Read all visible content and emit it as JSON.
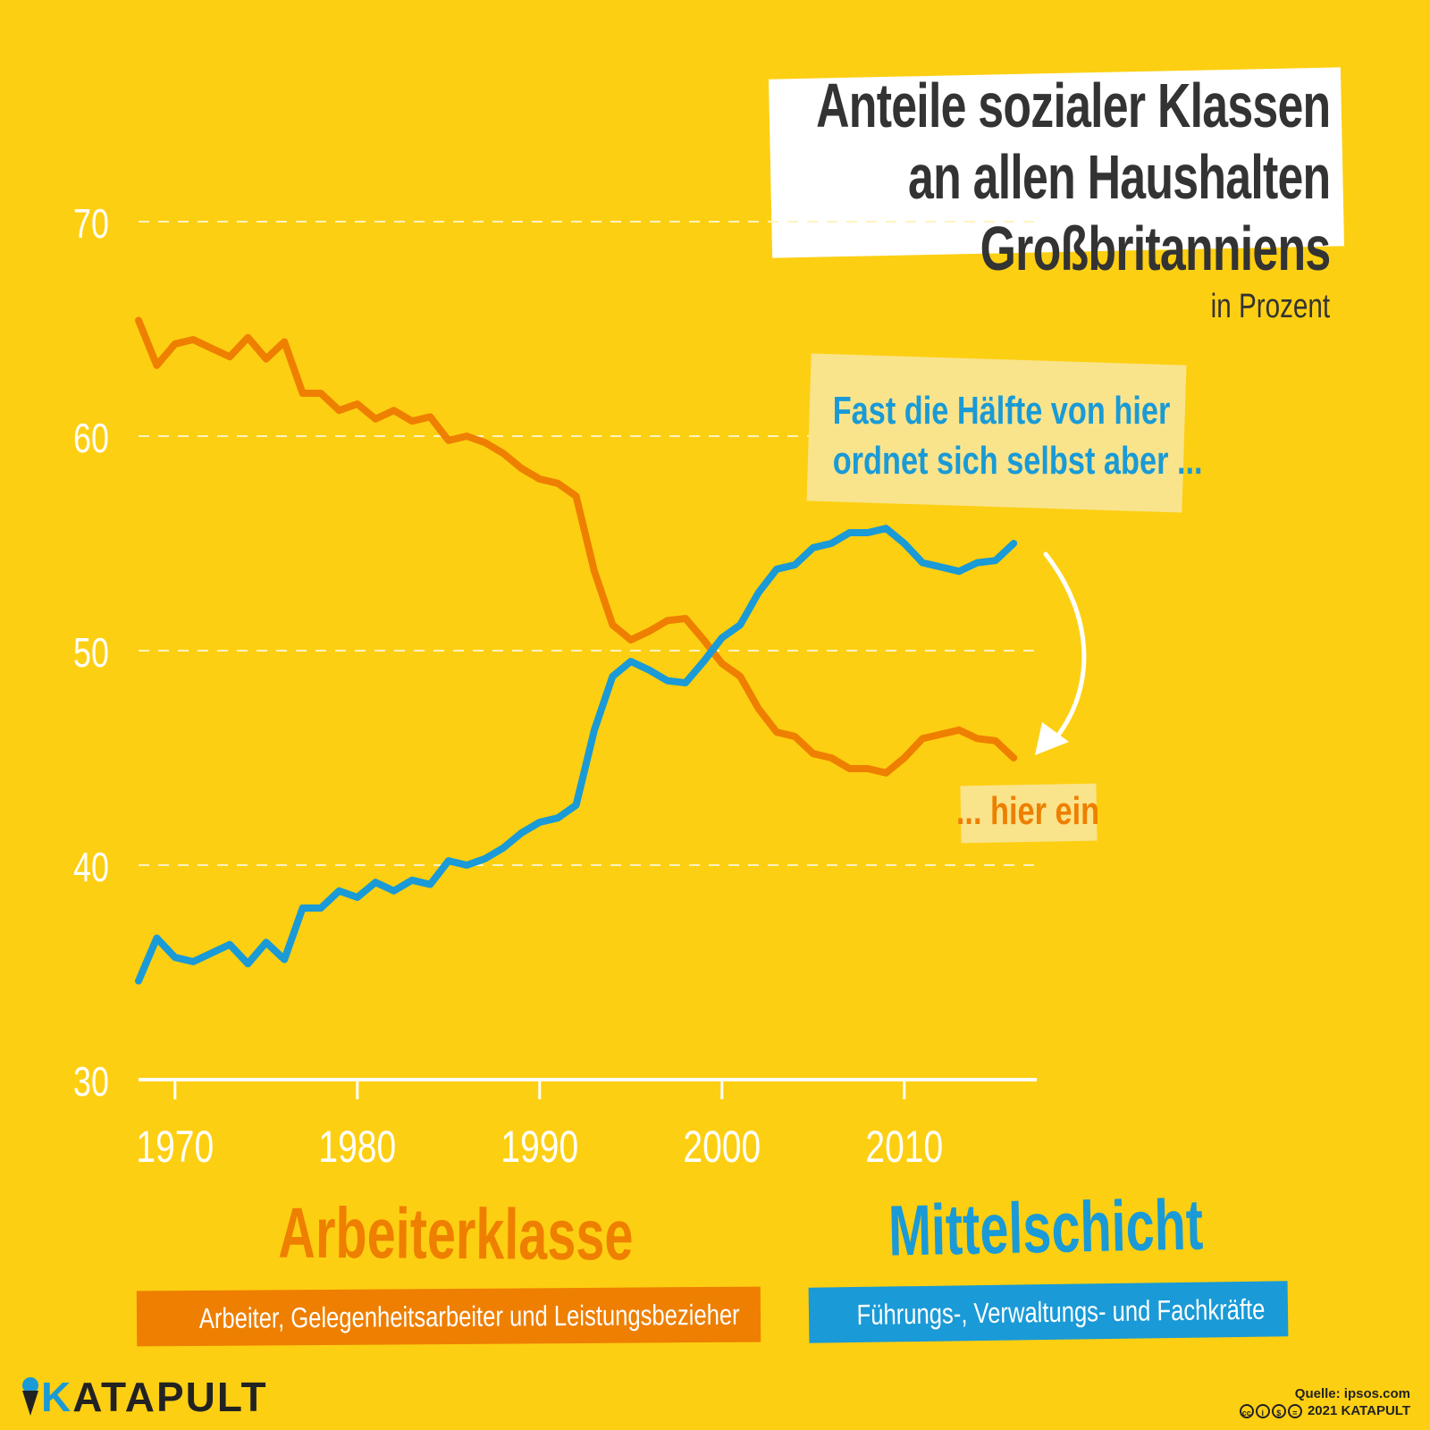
{
  "title_lines": [
    "Anteile sozialer Klassen",
    "an allen Haushalten",
    "Großbritanniens"
  ],
  "subtitle": "in Prozent",
  "annotation_top": [
    "Fast die Hälfte von hier",
    "ordnet sich selbst aber ..."
  ],
  "annotation_bottom": "... hier ein",
  "legend": {
    "working": {
      "title": "Arbeiterklasse",
      "desc": "Arbeiter, Gelegenheitsarbeiter und Leistungsbezieher",
      "color": "#ee7f00"
    },
    "middle": {
      "title": "Mittelschicht",
      "desc": "Führungs-, Verwaltungs- und Fachkräfte",
      "color": "#1a9ad6"
    }
  },
  "logo": {
    "k": "K",
    "rest": "ATAPULT"
  },
  "source": {
    "line1": "Quelle: ipsos.com",
    "line2": "2021 KATAPULT"
  },
  "colors": {
    "background": "#fdcf12",
    "working": "#ee7f00",
    "middle": "#1a9ad6",
    "arrow": "#ffffff"
  },
  "chart_data": {
    "type": "line",
    "ylim": [
      30,
      70
    ],
    "yticks": [
      30,
      40,
      50,
      60,
      70
    ],
    "xticks": [
      1970,
      1980,
      1990,
      2000,
      2010
    ],
    "xlim": [
      1968,
      2017
    ],
    "grid": true,
    "series": [
      {
        "name": "Arbeiterklasse",
        "color": "#ee7f00",
        "x": [
          1968,
          1969,
          1970,
          1971,
          1972,
          1973,
          1974,
          1975,
          1976,
          1977,
          1978,
          1979,
          1980,
          1981,
          1982,
          1983,
          1984,
          1985,
          1986,
          1987,
          1988,
          1989,
          1990,
          1991,
          1992,
          1993,
          1994,
          1995,
          1996,
          1997,
          1998,
          1999,
          2000,
          2001,
          2002,
          2003,
          2004,
          2005,
          2006,
          2007,
          2008,
          2009,
          2010,
          2011,
          2012,
          2013,
          2014,
          2015,
          2016
        ],
        "values": [
          65.4,
          63.3,
          64.3,
          64.5,
          64.1,
          63.7,
          64.6,
          63.6,
          64.4,
          62.0,
          62.0,
          61.2,
          61.5,
          60.8,
          61.2,
          60.7,
          60.9,
          59.8,
          60.0,
          59.7,
          59.2,
          58.5,
          58.0,
          57.8,
          57.2,
          53.7,
          51.2,
          50.5,
          50.9,
          51.4,
          51.5,
          50.5,
          49.4,
          48.8,
          47.3,
          46.2,
          46.0,
          45.2,
          45.0,
          44.5,
          44.5,
          44.3,
          45.0,
          45.9,
          46.1,
          46.3,
          45.9,
          45.8,
          45.0
        ]
      },
      {
        "name": "Mittelschicht",
        "color": "#1a9ad6",
        "x": [
          1968,
          1969,
          1970,
          1971,
          1972,
          1973,
          1974,
          1975,
          1976,
          1977,
          1978,
          1979,
          1980,
          1981,
          1982,
          1983,
          1984,
          1985,
          1986,
          1987,
          1988,
          1989,
          1990,
          1991,
          1992,
          1993,
          1994,
          1995,
          1996,
          1997,
          1998,
          1999,
          2000,
          2001,
          2002,
          2003,
          2004,
          2005,
          2006,
          2007,
          2008,
          2009,
          2010,
          2011,
          2012,
          2013,
          2014,
          2015,
          2016
        ],
        "values": [
          34.6,
          36.6,
          35.7,
          35.5,
          35.9,
          36.3,
          35.4,
          36.4,
          35.6,
          38.0,
          38.0,
          38.8,
          38.5,
          39.2,
          38.8,
          39.3,
          39.1,
          40.2,
          40.0,
          40.3,
          40.8,
          41.5,
          42.0,
          42.2,
          42.8,
          46.3,
          48.8,
          49.5,
          49.1,
          48.6,
          48.5,
          49.5,
          50.6,
          51.2,
          52.7,
          53.8,
          54.0,
          54.8,
          55.0,
          55.5,
          55.5,
          55.7,
          55.0,
          54.1,
          53.9,
          53.7,
          54.1,
          54.2,
          55.0
        ]
      }
    ]
  }
}
